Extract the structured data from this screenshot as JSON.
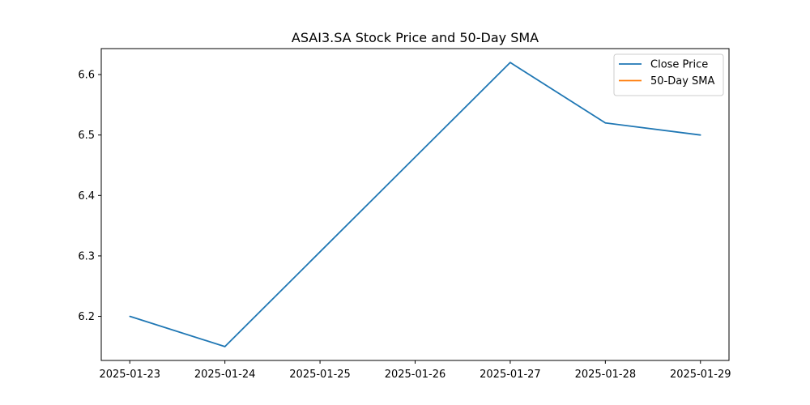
{
  "chart_data": {
    "type": "line",
    "title": "ASAI3.SA Stock Price and 50-Day SMA",
    "xlabel": "",
    "ylabel": "",
    "x": [
      "2025-01-23",
      "2025-01-24",
      "2025-01-25",
      "2025-01-26",
      "2025-01-27",
      "2025-01-28",
      "2025-01-29"
    ],
    "x_tick_labels": [
      "2025-01-23",
      "2025-01-24",
      "2025-01-25",
      "2025-01-26",
      "2025-01-27",
      "2025-01-28",
      "2025-01-29"
    ],
    "y_ticks": [
      6.2,
      6.3,
      6.4,
      6.5,
      6.6
    ],
    "y_tick_labels": [
      "6.2",
      "6.3",
      "6.4",
      "6.5",
      "6.6"
    ],
    "ylim": [
      6.127,
      6.643
    ],
    "xlim": [
      "2025-01-22T16:48",
      "2025-01-29T07:12"
    ],
    "grid": false,
    "legend_position": "top-right",
    "series": [
      {
        "name": "Close Price",
        "color": "#1f77b4",
        "points": [
          {
            "x": "2025-01-23",
            "y": 6.2
          },
          {
            "x": "2025-01-24",
            "y": 6.15
          },
          {
            "x": "2025-01-27",
            "y": 6.62
          },
          {
            "x": "2025-01-28",
            "y": 6.52
          },
          {
            "x": "2025-01-29",
            "y": 6.5
          }
        ]
      },
      {
        "name": "50-Day SMA",
        "color": "#ff7f0e",
        "points": []
      }
    ]
  }
}
